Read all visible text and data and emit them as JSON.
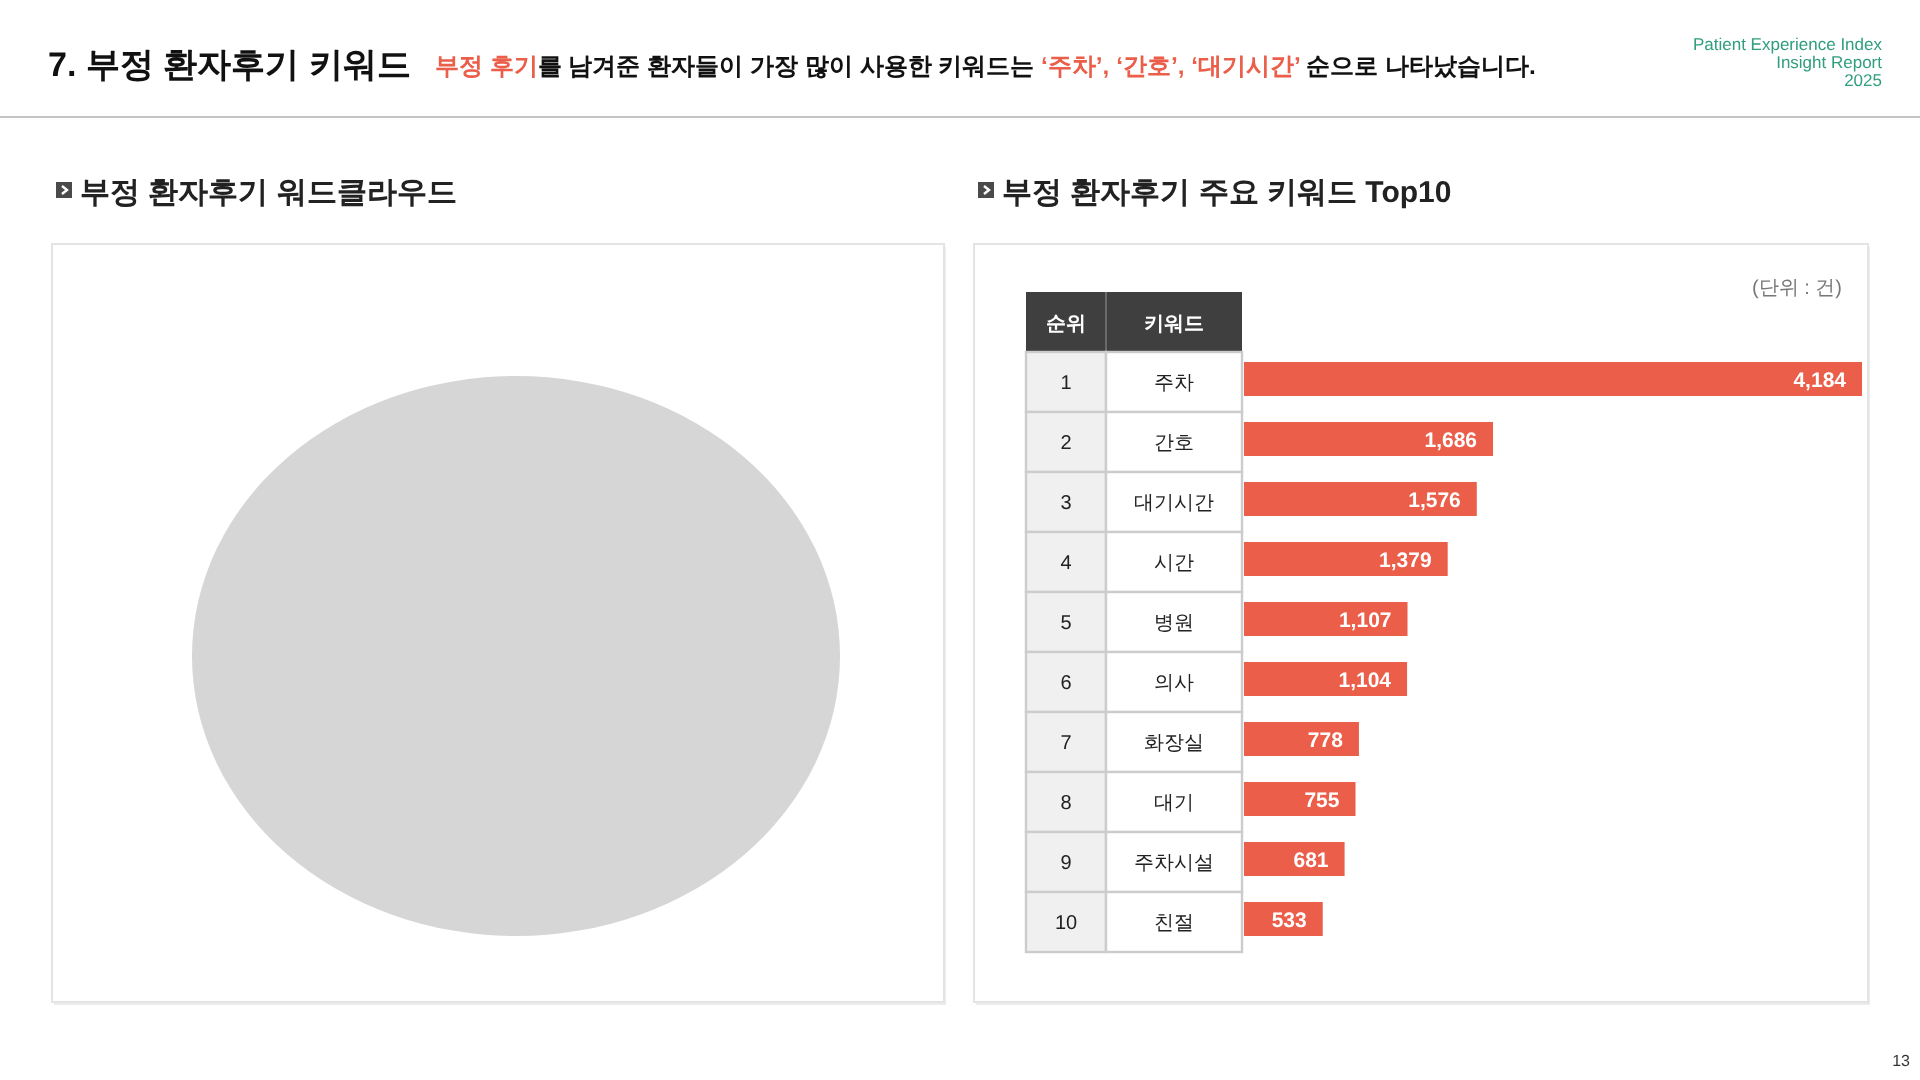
{
  "chart_data": [
    {
      "type": "other",
      "title": "7. 부정 환자후기 키워드",
      "subtitle": "**부정 후기**를 남겨준 환자들이 가장 많이 사용한 키워드는 **‘주차’, ‘간호’, ‘대기시간’** 순으로 나타났습니다.",
      "annotations": [
        "Patient Experience Index",
        "Insight Report",
        "2025",
        "13"
      ]
    },
    {
      "type": "other",
      "title": "부정 환자후기 워드클라우드"
    },
    {
      "type": "bar",
      "orientation": "horizontal",
      "title": "부정 환자후기 주요 키워드 Top10",
      "ylabel": "키워드",
      "annotations": [
        "(단위 : 건)",
        "순위"
      ],
      "categories": [
        "주차",
        "간호",
        "대기시간",
        "시간",
        "병원",
        "의사",
        "화장실",
        "대기",
        "주차시설",
        "친절"
      ],
      "y2_categories": [
        "1",
        "2",
        "3",
        "4",
        "5",
        "6",
        "7",
        "8",
        "9",
        "10"
      ],
      "values": [
        4184,
        1686,
        1576,
        1379,
        1107,
        1104,
        778,
        755,
        681,
        533
      ],
      "value_labels": [
        "4,184",
        "1,686",
        "1,576",
        "1,379",
        "1,107",
        "1,104",
        "778",
        "755",
        "681",
        "533"
      ],
      "color": "#ea5e4a"
    }
  ]
}
